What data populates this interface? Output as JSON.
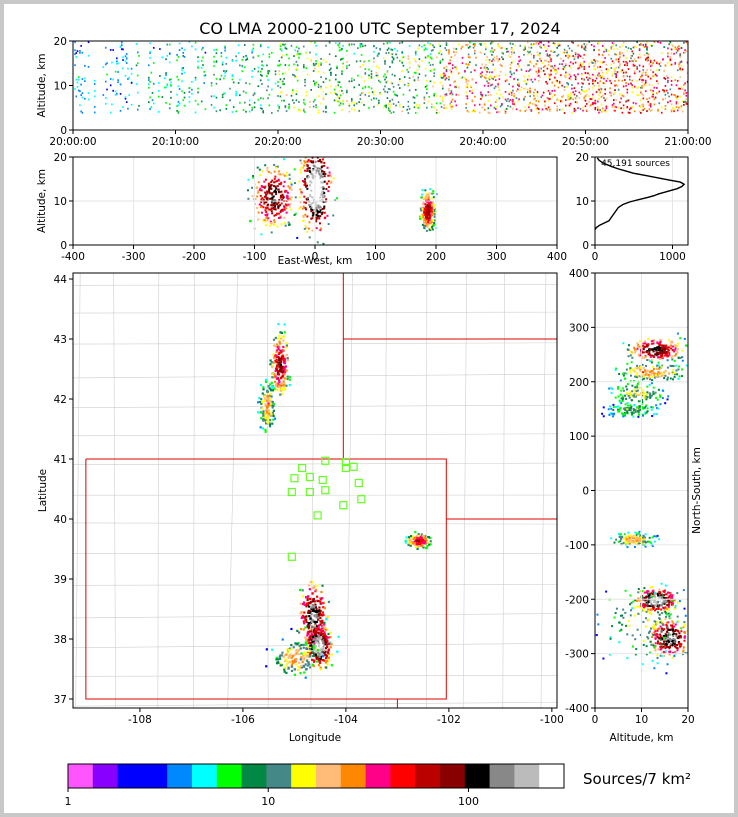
{
  "title": "CO LMA 2000-2100 UTC September 17, 2024",
  "sources_text": "45,191 sources",
  "colorbar": {
    "label": "Sources/7 km²",
    "ticks": [
      "1",
      "10",
      "100"
    ],
    "colors": [
      "#ff55ff",
      "#8800ff",
      "#0000ff",
      "#0000ff",
      "#0088ff",
      "#00ffff",
      "#00ff00",
      "#008844",
      "#448888",
      "#ffff00",
      "#ffbb77",
      "#ff8800",
      "#ff0088",
      "#ff0000",
      "#bb0000",
      "#880000",
      "#000000",
      "#888888",
      "#bbbbbb",
      "#ffffff"
    ]
  },
  "chart_data": [
    {
      "id": "time-height",
      "type": "heatmap",
      "ylabel": "Altitude, km",
      "ylim": [
        0,
        20
      ],
      "xlim": [
        "20:00:00",
        "21:00:00"
      ],
      "xticks": [
        "20:00:00",
        "20:10:00",
        "20:20:00",
        "20:30:00",
        "20:40:00",
        "20:50:00",
        "21:00:00"
      ],
      "yticks": [
        0,
        10,
        20
      ],
      "activity": [
        {
          "t": 2,
          "weight": 0.4
        },
        {
          "t": 10,
          "weight": 0.5
        },
        {
          "t": 16,
          "weight": 0.6
        },
        {
          "t": 24,
          "weight": 0.7
        },
        {
          "t": 32,
          "weight": 0.7
        },
        {
          "t": 40,
          "weight": 0.9
        },
        {
          "t": 50,
          "weight": 1.0
        },
        {
          "t": 58,
          "weight": 1.0
        }
      ]
    },
    {
      "id": "ew-height",
      "type": "heatmap",
      "xlabel": "East-West, km",
      "ylabel": "Altitude, km",
      "xlim": [
        -400,
        400
      ],
      "ylim": [
        0,
        20
      ],
      "xticks": [
        -400,
        -300,
        -200,
        -100,
        0,
        100,
        200,
        300,
        400
      ],
      "yticks": [
        0,
        10,
        20
      ],
      "clusters": [
        {
          "x": -70,
          "z": 11,
          "dx": 25,
          "dz": 5,
          "peak": 15
        },
        {
          "x": 0,
          "z": 13,
          "dx": 18,
          "dz": 7,
          "peak": 19
        },
        {
          "x": 185,
          "z": 8,
          "dx": 8,
          "dz": 3,
          "peak": 14
        }
      ]
    },
    {
      "id": "altitude-histogram",
      "type": "line",
      "xlim": [
        0,
        1200
      ],
      "ylim": [
        0,
        20
      ],
      "xticks": [
        0,
        1000
      ],
      "yticks": [
        0,
        10,
        20
      ],
      "x": [
        0,
        20,
        60,
        120,
        180,
        220,
        260,
        300,
        360,
        450,
        560,
        680,
        760,
        820,
        900,
        980,
        1060,
        1120,
        1150,
        1100,
        950,
        800,
        650,
        500,
        400,
        300,
        220,
        150,
        90,
        50,
        30
      ],
      "y": [
        3.5,
        4.0,
        4.5,
        5.0,
        5.5,
        6.5,
        7.5,
        8.5,
        9.2,
        9.8,
        10.3,
        10.8,
        11.2,
        11.6,
        12.0,
        12.4,
        12.8,
        13.3,
        13.8,
        14.3,
        14.8,
        15.3,
        15.8,
        16.3,
        16.8,
        17.3,
        17.8,
        18.3,
        18.8,
        19.3,
        19.8
      ]
    },
    {
      "id": "plan-view",
      "type": "heatmap",
      "xlabel": "Longitude",
      "ylabel": "Latitude",
      "xlim": [
        -109.3,
        -99.9
      ],
      "ylim": [
        36.85,
        44.1
      ],
      "xticks": [
        -108,
        -106,
        -104,
        -102,
        -100
      ],
      "yticks": [
        37,
        38,
        39,
        40,
        41,
        42,
        43,
        44
      ],
      "clusters": [
        {
          "lon": -105.3,
          "lat": 42.6,
          "dlon": 0.12,
          "dlat": 0.35,
          "peak": 14
        },
        {
          "lon": -105.55,
          "lat": 41.9,
          "dlon": 0.1,
          "dlat": 0.3,
          "peak": 10
        },
        {
          "lon": -104.65,
          "lat": 38.4,
          "dlon": 0.2,
          "dlat": 0.4,
          "peak": 16
        },
        {
          "lon": -104.55,
          "lat": 37.9,
          "dlon": 0.18,
          "dlat": 0.25,
          "peak": 18
        },
        {
          "lon": -105.0,
          "lat": 37.7,
          "dlon": 0.3,
          "dlat": 0.2,
          "peak": 10
        },
        {
          "lon": -102.6,
          "lat": 39.65,
          "dlon": 0.15,
          "dlat": 0.08,
          "peak": 13
        }
      ],
      "stations": [
        {
          "lon": -104.4,
          "lat": 40.97
        },
        {
          "lon": -104.0,
          "lat": 40.95
        },
        {
          "lon": -104.0,
          "lat": 40.85
        },
        {
          "lon": -103.85,
          "lat": 40.87
        },
        {
          "lon": -104.85,
          "lat": 40.85
        },
        {
          "lon": -104.7,
          "lat": 40.7
        },
        {
          "lon": -105.0,
          "lat": 40.68
        },
        {
          "lon": -104.45,
          "lat": 40.65
        },
        {
          "lon": -103.75,
          "lat": 40.6
        },
        {
          "lon": -104.4,
          "lat": 40.48
        },
        {
          "lon": -105.05,
          "lat": 40.45
        },
        {
          "lon": -104.7,
          "lat": 40.45
        },
        {
          "lon": -103.7,
          "lat": 40.33
        },
        {
          "lon": -104.05,
          "lat": 40.23
        },
        {
          "lon": -104.55,
          "lat": 40.06
        },
        {
          "lon": -105.05,
          "lat": 39.37
        }
      ]
    },
    {
      "id": "ns-height",
      "type": "heatmap",
      "xlabel": "Altitude, km",
      "ylabel": "North-South, km",
      "xlim": [
        0,
        20
      ],
      "ylim": [
        -400,
        400
      ],
      "xticks": [
        0,
        10,
        20
      ],
      "yticks": [
        -400,
        -300,
        -200,
        -100,
        0,
        100,
        200,
        300,
        400
      ],
      "clusters": [
        {
          "z": 13,
          "y": 260,
          "dz": 4,
          "dy": 15,
          "peak": 15
        },
        {
          "z": 12,
          "y": 220,
          "dz": 5,
          "dy": 12,
          "peak": 10
        },
        {
          "z": 9,
          "y": 180,
          "dz": 4,
          "dy": 15,
          "peak": 8
        },
        {
          "z": 8,
          "y": 150,
          "dz": 4,
          "dy": 8,
          "peak": 7
        },
        {
          "z": 8,
          "y": -88,
          "dz": 3,
          "dy": 8,
          "peak": 10
        },
        {
          "z": 13,
          "y": -200,
          "dz": 3,
          "dy": 15,
          "peak": 18
        },
        {
          "z": 16,
          "y": -270,
          "dz": 3,
          "dy": 25,
          "peak": 16
        },
        {
          "z": 10,
          "y": -240,
          "dz": 6,
          "dy": 50,
          "peak": 8
        }
      ]
    }
  ]
}
